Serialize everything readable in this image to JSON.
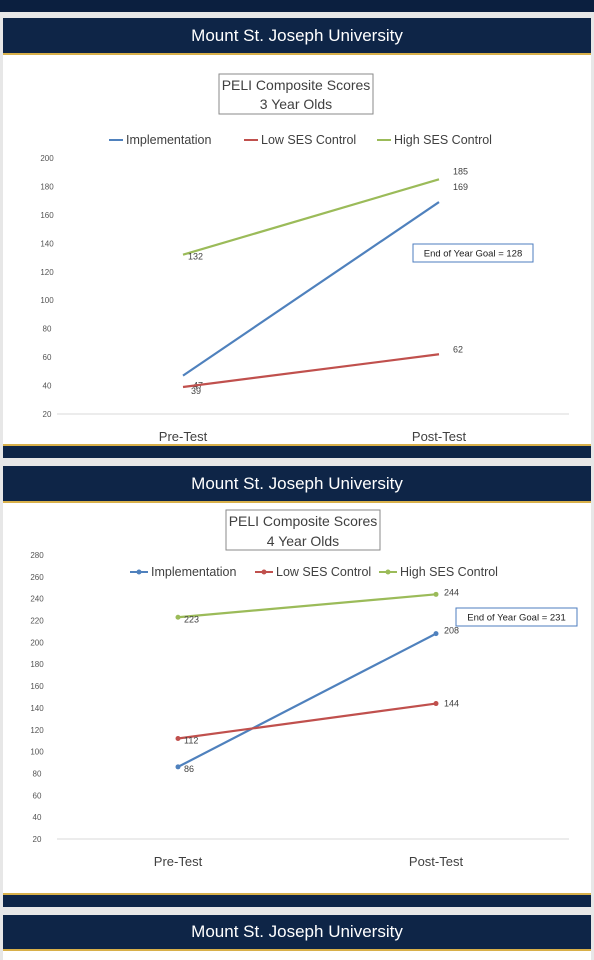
{
  "header_text": "Mount St. Joseph University",
  "colors": {
    "implementation": "#4f81bd",
    "low_ses": "#c0504d",
    "high_ses": "#9bbb59",
    "navy": "#0e2547",
    "gold": "#d8b04a"
  },
  "chart_data": [
    {
      "type": "line",
      "title": "PELI Composite Scores",
      "subtitle": "3 Year Olds",
      "categories": [
        "Pre-Test",
        "Post-Test"
      ],
      "series": [
        {
          "name": "Implementation",
          "values": [
            47,
            169
          ]
        },
        {
          "name": "Low SES Control",
          "values": [
            39,
            62
          ]
        },
        {
          "name": "High SES Control",
          "values": [
            132,
            185
          ]
        }
      ],
      "yticks": [
        "20",
        "40",
        "60",
        "80",
        "100",
        "120",
        "140",
        "160",
        "180",
        "200"
      ],
      "ylim": [
        20,
        200
      ],
      "markers": false,
      "annotation": "End of Year Goal = 128",
      "legend": "top",
      "grid": false
    },
    {
      "type": "line",
      "title": "PELI Composite Scores",
      "subtitle": "4 Year Olds",
      "categories": [
        "Pre-Test",
        "Post-Test"
      ],
      "series": [
        {
          "name": "Implementation",
          "values": [
            86,
            208
          ]
        },
        {
          "name": "Low SES Control",
          "values": [
            112,
            144
          ]
        },
        {
          "name": "High SES Control",
          "values": [
            223,
            244
          ]
        }
      ],
      "yticks": [
        "20",
        "40",
        "60",
        "80",
        "100",
        "120",
        "140",
        "160",
        "180",
        "200",
        "220",
        "240",
        "260",
        "280"
      ],
      "ylim": [
        20,
        280
      ],
      "markers": true,
      "annotation": "End of Year Goal = 231",
      "legend": "top",
      "grid": false
    }
  ]
}
